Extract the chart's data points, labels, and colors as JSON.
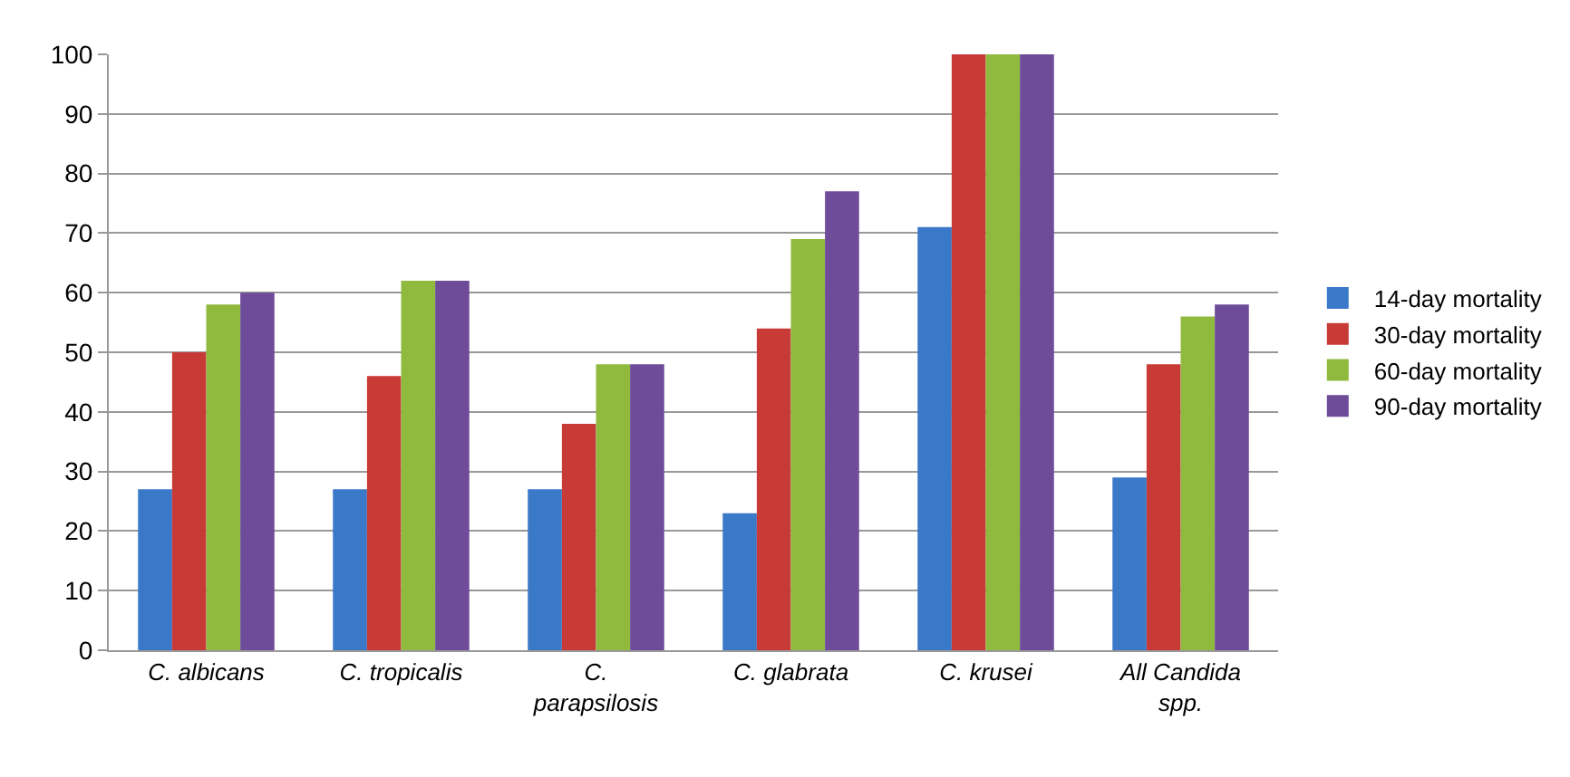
{
  "chart_data": {
    "type": "bar",
    "categories": [
      "C. albicans",
      "C. tropicalis",
      "C. parapsilosis",
      "C. glabrata",
      "C. krusei",
      "All Candida spp."
    ],
    "series": [
      {
        "name": "14-day mortality",
        "color": "#3a78c8",
        "values": [
          27,
          27,
          27,
          23,
          71,
          29
        ]
      },
      {
        "name": "30-day mortality",
        "color": "#c83a36",
        "values": [
          50,
          46,
          38,
          54,
          100,
          48
        ]
      },
      {
        "name": "60-day mortality",
        "color": "#8fba3e",
        "values": [
          58,
          62,
          48,
          69,
          100,
          56
        ]
      },
      {
        "name": "90-day mortality",
        "color": "#6f4c9a",
        "values": [
          60,
          62,
          48,
          77,
          100,
          58
        ]
      }
    ],
    "ylim": [
      0,
      100
    ],
    "yticks": [
      0,
      10,
      20,
      30,
      40,
      50,
      60,
      70,
      80,
      90,
      100
    ],
    "grid": "y",
    "legend": "right"
  }
}
